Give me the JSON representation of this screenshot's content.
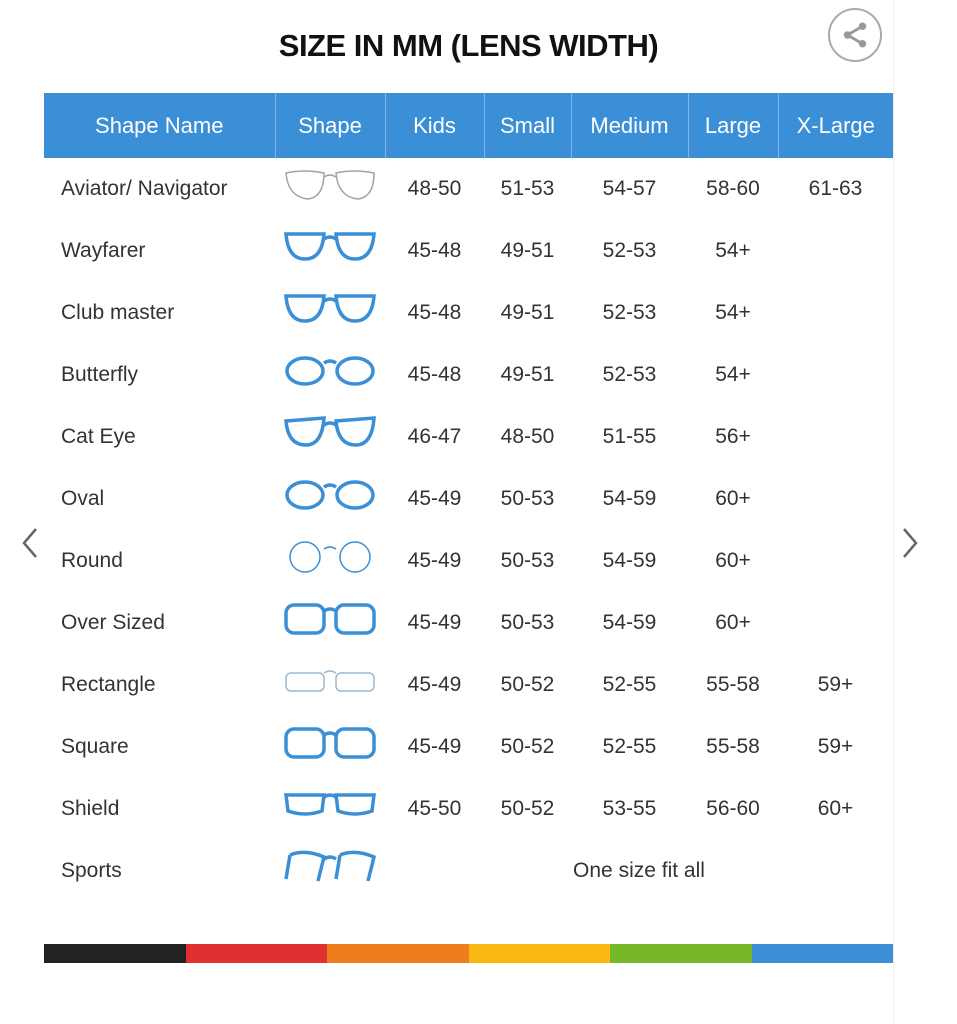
{
  "title": "SIZE IN MM (LENS WIDTH)",
  "icons": {
    "share": "share-icon",
    "prev": "chevron-left-icon",
    "next": "chevron-right-icon"
  },
  "colors": {
    "header": "#3a8fd6",
    "frame_blue": "#3a8fd6",
    "frame_gray": "#9aa4ad"
  },
  "columns": [
    "Shape Name",
    "Shape",
    "Kids",
    "Small",
    "Medium",
    "Large",
    "X-Large"
  ],
  "rows": [
    {
      "name": "Aviator/ Navigator",
      "shape": "aviator",
      "color": "#9aa4ad",
      "sizes": [
        "48-50",
        "51-53",
        "54-57",
        "58-60",
        "61-63"
      ]
    },
    {
      "name": "Wayfarer",
      "shape": "wayfarer",
      "color": "#3a8fd6",
      "sizes": [
        "45-48",
        "49-51",
        "52-53",
        "54+",
        ""
      ]
    },
    {
      "name": "Club master",
      "shape": "clubmaster",
      "color": "#3a8fd6",
      "sizes": [
        "45-48",
        "49-51",
        "52-53",
        "54+",
        ""
      ]
    },
    {
      "name": "Butterfly",
      "shape": "butterfly",
      "color": "#3a8fd6",
      "sizes": [
        "45-48",
        "49-51",
        "52-53",
        "54+",
        ""
      ]
    },
    {
      "name": "Cat Eye",
      "shape": "cateye",
      "color": "#3a8fd6",
      "sizes": [
        "46-47",
        "48-50",
        "51-55",
        "56+",
        ""
      ]
    },
    {
      "name": "Oval",
      "shape": "oval",
      "color": "#3a8fd6",
      "sizes": [
        "45-49",
        "50-53",
        "54-59",
        "60+",
        ""
      ]
    },
    {
      "name": "Round",
      "shape": "round",
      "color": "#3a8fd6",
      "sizes": [
        "45-49",
        "50-53",
        "54-59",
        "60+",
        ""
      ]
    },
    {
      "name": "Over Sized",
      "shape": "oversized",
      "color": "#3a8fd6",
      "sizes": [
        "45-49",
        "50-53",
        "54-59",
        "60+",
        ""
      ]
    },
    {
      "name": "Rectangle",
      "shape": "rectangle",
      "color": "#9ab8d0",
      "sizes": [
        "45-49",
        "50-52",
        "52-55",
        "55-58",
        "59+"
      ]
    },
    {
      "name": "Square",
      "shape": "square",
      "color": "#3a8fd6",
      "sizes": [
        "45-49",
        "50-52",
        "52-55",
        "55-58",
        "59+"
      ]
    },
    {
      "name": "Shield",
      "shape": "shield",
      "color": "#3a8fd6",
      "sizes": [
        "45-50",
        "50-52",
        "53-55",
        "56-60",
        "60+"
      ]
    },
    {
      "name": "Sports",
      "shape": "sports",
      "color": "#3a8fd6",
      "all_sizes": "One size fit all"
    }
  ],
  "color_bar": [
    "#222222",
    "#e03030",
    "#ee7d1d",
    "#fbb812",
    "#76b82a",
    "#3a8fd6"
  ]
}
